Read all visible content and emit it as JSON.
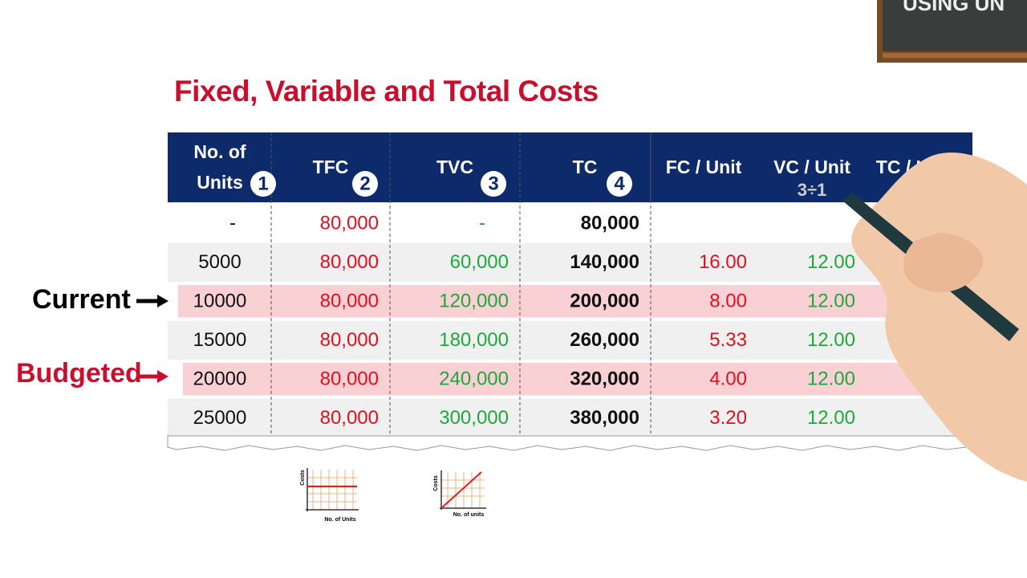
{
  "title": "Fixed, Variable and Total Costs",
  "board_text": "USING UN",
  "table": {
    "headers": [
      [
        "No. of",
        "Units"
      ],
      "TFC",
      "TVC",
      "TC",
      "FC / Unit",
      "VC / Unit",
      "TC / U"
    ],
    "badges": [
      "1",
      "2",
      "3",
      "4"
    ],
    "formula": "3÷1",
    "rows": [
      [
        "-",
        "80,000",
        "-",
        "80,000",
        null,
        null
      ],
      [
        "5000",
        "80,000",
        "60,000",
        "140,000",
        "16.00",
        "12.00"
      ],
      [
        "10000",
        "80,000",
        "120,000",
        "200,000",
        "8.00",
        "12.00"
      ],
      [
        "15000",
        "80,000",
        "180,000",
        "260,000",
        "5.33",
        "12.00"
      ],
      [
        "20000",
        "80,000",
        "240,000",
        "320,000",
        "4.00",
        "12.00"
      ],
      [
        "25000",
        "80,000",
        "300,000",
        "380,000",
        "3.20",
        "12.00"
      ]
    ]
  },
  "labels": {
    "current": "Current",
    "budgeted": "Budgeted"
  },
  "mini_charts": [
    {
      "y_label": "Costs",
      "x_label": "No. of Units"
    },
    {
      "y_label": "Costs",
      "x_label": "No. of units"
    }
  ]
}
